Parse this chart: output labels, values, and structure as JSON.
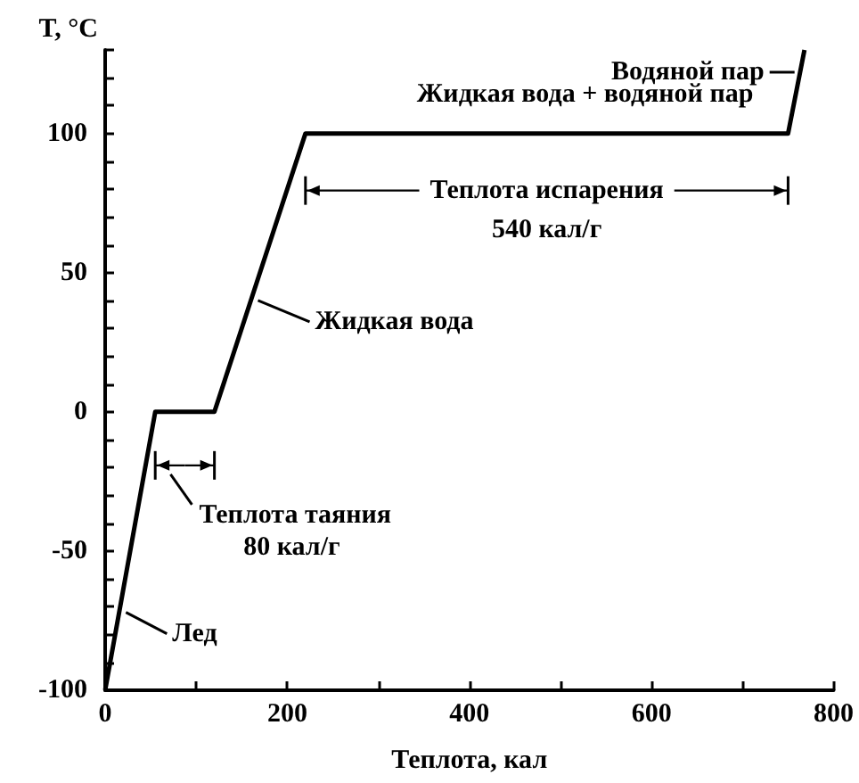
{
  "chart_data": {
    "type": "line",
    "xlabel": "Теплота, кал",
    "ylabel": "T, °C",
    "x": [
      0,
      55,
      120,
      220,
      750,
      768
    ],
    "series": [
      {
        "color": "#000000",
        "values": [
          -100,
          0,
          0,
          100,
          100,
          130
        ]
      }
    ],
    "xlim": [
      0,
      800
    ],
    "xticks": [
      0,
      {
        "value": 100,
        "label": null
      },
      200,
      {
        "value": 300,
        "label": null
      },
      400,
      {
        "value": 500,
        "label": null
      },
      600,
      {
        "value": 700,
        "label": null
      },
      800
    ],
    "ylim": [
      -100,
      130
    ],
    "yticks": [
      -100,
      {
        "value": -90,
        "label": null
      },
      {
        "value": -80,
        "label": null
      },
      {
        "value": -70,
        "label": null
      },
      {
        "value": -60,
        "label": null
      },
      -50,
      {
        "value": -40,
        "label": null
      },
      {
        "value": -30,
        "label": null
      },
      {
        "value": -20,
        "label": null
      },
      {
        "value": -10,
        "label": null
      },
      0,
      {
        "value": 10,
        "label": null
      },
      {
        "value": 20,
        "label": null
      },
      {
        "value": 30,
        "label": null
      },
      {
        "value": 40,
        "label": null
      },
      50,
      {
        "value": 60,
        "label": null
      },
      {
        "value": 70,
        "label": null
      },
      {
        "value": 80,
        "label": null
      },
      {
        "value": 90,
        "label": null
      },
      100,
      {
        "value": 110,
        "label": null
      },
      {
        "value": 120,
        "label": null
      },
      {
        "value": 130,
        "label": null
      }
    ],
    "grid": false,
    "marker": "none",
    "line_style": "solid",
    "annotations": [
      {
        "text": "Водяной пар",
        "x": 763,
        "y": 122
      },
      {
        "text": "Жидкая вода + водяной пар",
        "x": 527,
        "y": 100
      },
      {
        "text": "Жидкая вода",
        "x": 160,
        "y": 40
      },
      {
        "text": "Лед",
        "x": 15,
        "y": -72
      },
      "Теплота испарения",
      "540 кал/г",
      "Теплота таяния",
      "80 кал/г"
    ]
  }
}
